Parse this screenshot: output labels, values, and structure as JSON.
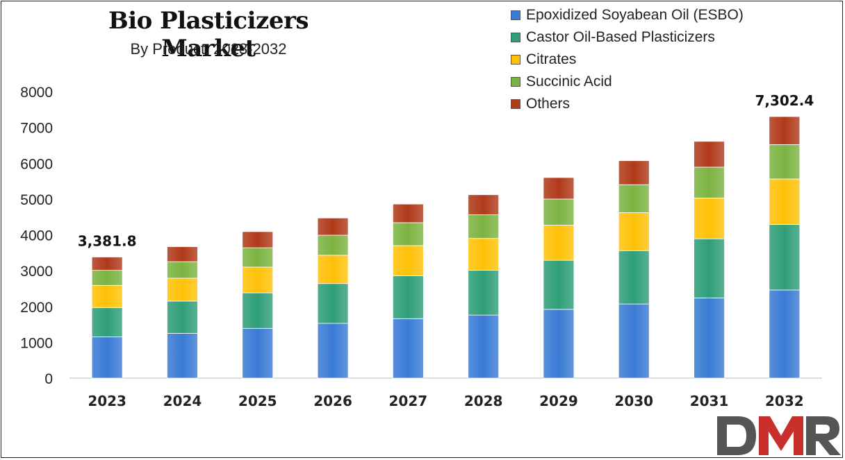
{
  "chart_data": {
    "type": "bar",
    "stacked": true,
    "title": "Bio Plasticizers Market",
    "subtitle": "By Product, 2023-2032",
    "categories": [
      "2023",
      "2024",
      "2025",
      "2026",
      "2027",
      "2028",
      "2029",
      "2030",
      "2031",
      "2032"
    ],
    "series": [
      {
        "name": "Epoxidized Soyabean Oil (ESBO)",
        "color": "#3a7bd5",
        "values": [
          1150,
          1250,
          1390,
          1530,
          1660,
          1760,
          1920,
          2070,
          2240,
          2460
        ]
      },
      {
        "name": "Castor Oil-Based Plasticizers",
        "color": "#2f9e78",
        "values": [
          820,
          900,
          990,
          1110,
          1200,
          1250,
          1370,
          1490,
          1650,
          1830
        ]
      },
      {
        "name": "Citrates",
        "color": "#ffc107",
        "values": [
          620,
          640,
          720,
          790,
          840,
          890,
          980,
          1060,
          1140,
          1270
        ]
      },
      {
        "name": "Succinic Acid",
        "color": "#7cb342",
        "values": [
          420,
          460,
          540,
          560,
          640,
          660,
          730,
          780,
          860,
          960
        ]
      },
      {
        "name": "Others",
        "color": "#b03a1a",
        "values": [
          371.8,
          420,
          450,
          480,
          520,
          560,
          600,
          670,
          720,
          782.4
        ]
      }
    ],
    "ylim": [
      0,
      8000
    ],
    "yticks": [
      0,
      1000,
      2000,
      3000,
      4000,
      5000,
      6000,
      7000,
      8000
    ],
    "annotations": [
      {
        "category": "2023",
        "text": "3,381.8"
      },
      {
        "category": "2032",
        "text": "7,302.4"
      }
    ],
    "legend_position": "top-right",
    "grid": false
  },
  "logo": {
    "text": "DMR"
  }
}
